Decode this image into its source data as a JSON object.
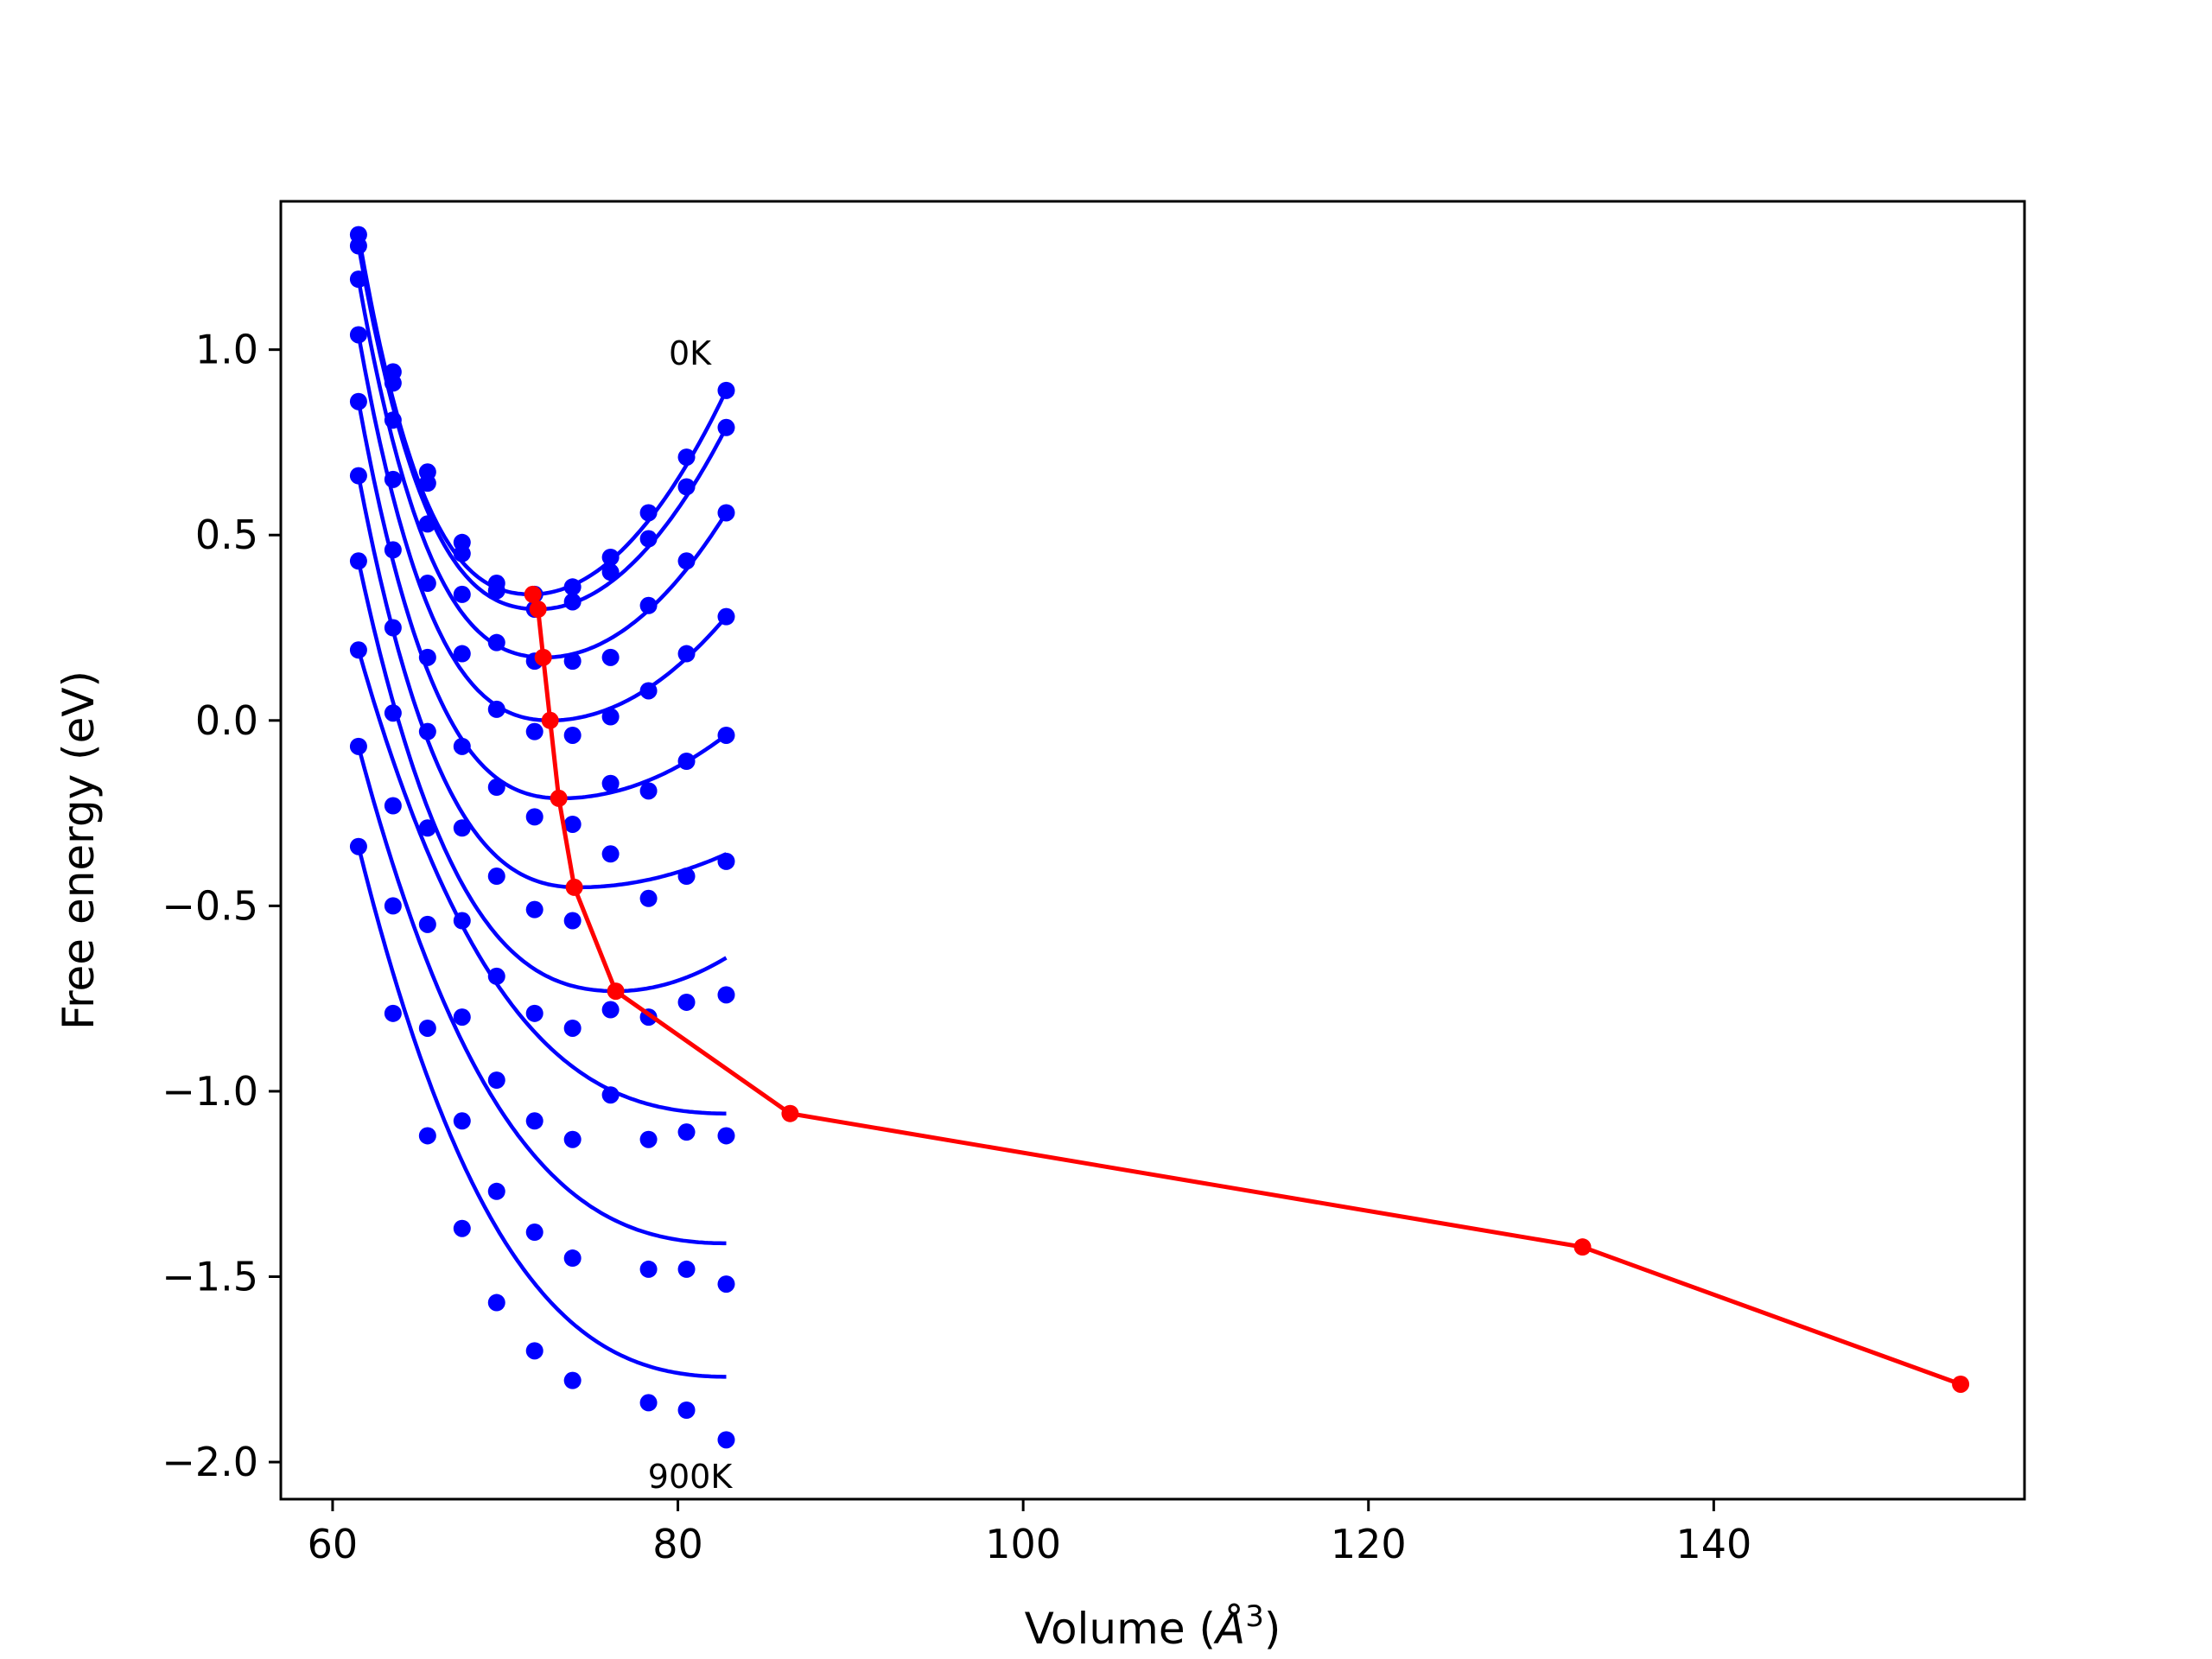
{
  "chart_data": {
    "type": "line",
    "xlabel": "Volume (",
    "xlabel_symbol": "Å",
    "xlabel_exp": "3",
    "xlabel_close": ")",
    "ylabel": "Free energy (eV)",
    "xlim": [
      57,
      158
    ],
    "ylim": [
      -2.1,
      1.4
    ],
    "x_ticks": [
      60,
      80,
      100,
      120,
      140
    ],
    "x_tick_labels": [
      "60",
      "80",
      "100",
      "120",
      "140"
    ],
    "y_ticks": [
      -2.0,
      -1.5,
      -1.0,
      -0.5,
      0.0,
      0.5,
      1.0
    ],
    "y_tick_labels": [
      "−2.0",
      "−1.5",
      "−1.0",
      "−0.5",
      "0.0",
      "0.5",
      "1.0"
    ],
    "grid": false,
    "annotations": [
      {
        "text": "0K",
        "x": 80.7,
        "y": 0.96
      },
      {
        "text": "900K",
        "x": 80.7,
        "y": -2.07
      }
    ],
    "colors": {
      "curves": "#0000ff",
      "min_path": "#ff0000",
      "axes": "#000000"
    },
    "volumes": [
      61.5,
      63.5,
      65.5,
      67.5,
      69.5,
      71.7,
      73.9,
      76.1,
      78.3,
      80.5,
      82.8
    ],
    "series": [
      {
        "points": [
          1.31,
          0.94,
          0.67,
          0.48,
          0.37,
          0.34,
          0.36,
          0.44,
          0.56,
          0.71,
          0.89
        ],
        "fit_min_v": 71.5,
        "fit_min_e": 0.34,
        "fit_b": 0.0083,
        "fit_c": 0.00022
      },
      {
        "points": [
          1.28,
          0.91,
          0.64,
          0.45,
          0.35,
          0.3,
          0.32,
          0.4,
          0.49,
          0.63,
          0.79
        ],
        "fit_min_v": 71.9,
        "fit_min_e": 0.3,
        "fit_b": 0.0076,
        "fit_c": 0.00018
      },
      {
        "points": [
          1.19,
          0.81,
          0.53,
          0.34,
          0.21,
          0.16,
          0.16,
          0.17,
          0.31,
          0.43,
          0.56
        ],
        "fit_min_v": 72.3,
        "fit_min_e": 0.17,
        "fit_b": 0.0068,
        "fit_c": 0.00012
      },
      {
        "points": [
          1.04,
          0.65,
          0.37,
          0.18,
          0.03,
          -0.03,
          -0.04,
          0.01,
          0.08,
          0.18,
          0.28
        ],
        "fit_min_v": 72.6,
        "fit_min_e": 0.0,
        "fit_b": 0.0058,
        "fit_c": 4e-05
      },
      {
        "points": [
          0.86,
          0.46,
          0.17,
          -0.07,
          -0.18,
          -0.26,
          -0.28,
          -0.17,
          -0.19,
          -0.11,
          -0.04
        ],
        "fit_min_v": 73.2,
        "fit_min_e": -0.21,
        "fit_b": 0.0045,
        "fit_c": -4e-05
      },
      {
        "points": [
          0.66,
          0.25,
          -0.03,
          -0.29,
          -0.42,
          -0.51,
          -0.54,
          -0.36,
          -0.48,
          -0.42,
          -0.38
        ],
        "fit_min_v": 74.2,
        "fit_min_e": -0.45,
        "fit_b": 0.0033,
        "fit_c": -8e-05
      },
      {
        "points": [
          0.43,
          0.02,
          -0.29,
          -0.54,
          -0.69,
          -0.79,
          -0.83,
          -0.78,
          -0.8,
          -0.76,
          -0.74
        ],
        "fit_min_v": 76.4,
        "fit_min_e": -0.73,
        "fit_b": 0.0024,
        "fit_c": -9e-05
      },
      {
        "points": [
          0.19,
          -0.23,
          -0.55,
          -0.8,
          -0.97,
          -1.08,
          -1.13,
          -1.01,
          -1.13,
          -1.11,
          -1.12
        ],
        "fit_min_v": 82.8,
        "fit_min_e": -1.06,
        "fit_b": 0.0019,
        "fit_c": -9e-05
      },
      {
        "points": [
          -0.07,
          -0.5,
          -0.83,
          -1.08,
          -1.27,
          -1.38,
          -1.45,
          null,
          -1.48,
          -1.48,
          -1.52
        ],
        "fit_min_v": 82.8,
        "fit_min_e": -1.41,
        "fit_b": 0.0026,
        "fit_c": -7e-05
      },
      {
        "points": [
          -0.34,
          -0.79,
          -1.12,
          -1.37,
          -1.57,
          -1.7,
          -1.78,
          null,
          -1.84,
          -1.86,
          -1.94
        ],
        "fit_min_v": 82.8,
        "fit_min_e": -1.77,
        "fit_b": 0.0036,
        "fit_c": -6e-05
      }
    ],
    "min_path": {
      "x": [
        71.6,
        71.9,
        72.2,
        72.6,
        73.1,
        74.0,
        76.4,
        86.5,
        132.4,
        154.3
      ],
      "y": [
        0.34,
        0.3,
        0.17,
        0.0,
        -0.21,
        -0.45,
        -0.73,
        -1.06,
        -1.42,
        -1.79
      ]
    }
  }
}
